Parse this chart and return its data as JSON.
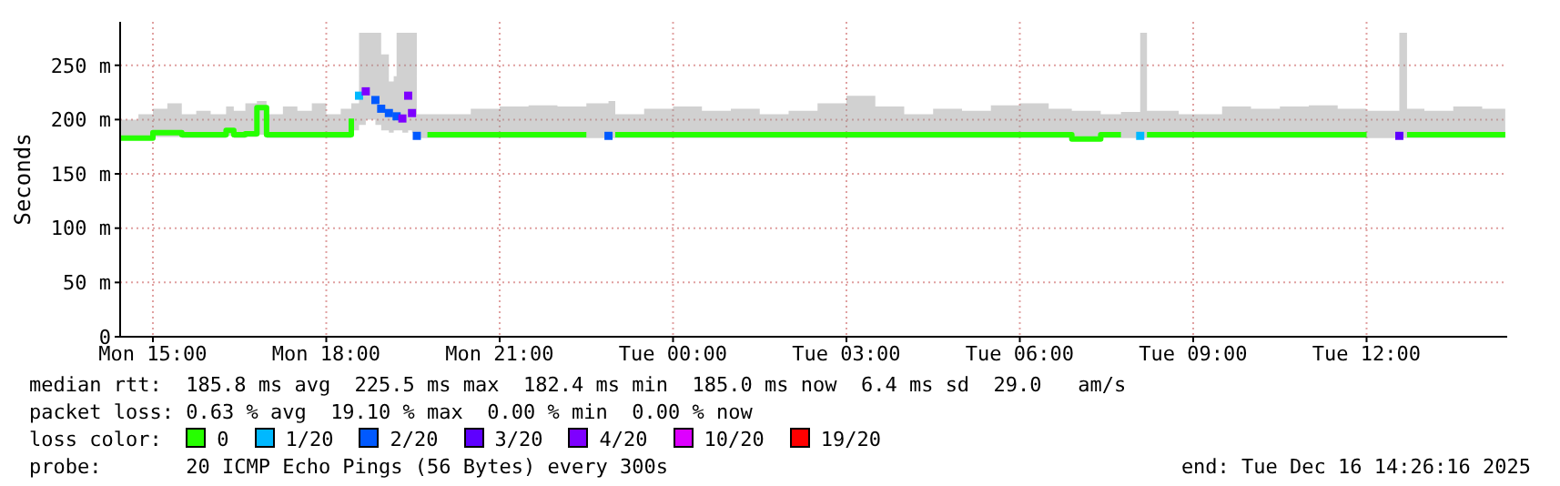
{
  "chart_data": {
    "type": "step",
    "ylabel": "Seconds",
    "xlim": [
      "2025-12-15T14:26",
      "2025-12-16T14:26"
    ],
    "xticks": [
      {
        "value": "2025-12-15T15:00",
        "label": "Mon 15:00"
      },
      {
        "value": "2025-12-15T18:00",
        "label": "Mon 18:00"
      },
      {
        "value": "2025-12-15T21:00",
        "label": "Mon 21:00"
      },
      {
        "value": "2025-12-16T00:00",
        "label": "Tue 00:00"
      },
      {
        "value": "2025-12-16T03:00",
        "label": "Tue 03:00"
      },
      {
        "value": "2025-12-16T06:00",
        "label": "Tue 06:00"
      },
      {
        "value": "2025-12-16T09:00",
        "label": "Tue 09:00"
      },
      {
        "value": "2025-12-16T12:00",
        "label": "Tue 12:00"
      }
    ],
    "ylim": [
      0,
      290
    ],
    "yticks": [
      0,
      {
        "value": 50,
        "label": "50 m"
      },
      {
        "value": 100,
        "label": "100 m"
      },
      {
        "value": 150,
        "label": "150 m"
      },
      {
        "value": 200,
        "label": "200 m"
      },
      {
        "value": 250,
        "label": "250 m"
      }
    ],
    "grid": true,
    "legend": "bottom",
    "legend_title": "loss color:",
    "annotations": [
      "median rtt:  185.8 ms avg  225.5 ms max  182.4 ms min  185.0 ms now  6.4 ms sd  29.0   am/s",
      "packet loss: 0.63 % avg  19.10 % max  0.00 % min  0.00 % now",
      "probe:       20 ICMP Echo Pings (56 Bytes) every 300s",
      "end: Tue Dec 16 14:26:16 2025"
    ],
    "series": [
      {
        "name": "0",
        "color": "#26ff00",
        "x": [
          "2025-12-15T14:26",
          "2025-12-15T14:45",
          "2025-12-15T15:00",
          "2025-12-15T15:15",
          "2025-12-15T15:30",
          "2025-12-15T15:45",
          "2025-12-15T16:00",
          "2025-12-15T16:16",
          "2025-12-15T16:24",
          "2025-12-15T16:36",
          "2025-12-15T16:48",
          "2025-12-15T16:58",
          "2025-12-15T17:15",
          "2025-12-15T17:30",
          "2025-12-15T17:45",
          "2025-12-15T18:00",
          "2025-12-15T18:15",
          "2025-12-15T18:26",
          "2025-12-15T18:34",
          "2025-12-15T18:41",
          "2025-12-15T18:51",
          "2025-12-15T18:57",
          "2025-12-15T19:05",
          "2025-12-15T19:10",
          "2025-12-15T19:13",
          "2025-12-15T19:19",
          "2025-12-15T19:25",
          "2025-12-15T19:29",
          "2025-12-15T19:34",
          "2025-12-15T19:45",
          "2025-12-15T20:00",
          "2025-12-15T20:30",
          "2025-12-15T21:00",
          "2025-12-15T21:30",
          "2025-12-15T22:00",
          "2025-12-15T22:30",
          "2025-12-15T22:53",
          "2025-12-15T23:00",
          "2025-12-15T23:30",
          "2025-12-16T00:00",
          "2025-12-16T00:30",
          "2025-12-16T01:00",
          "2025-12-16T01:30",
          "2025-12-16T02:00",
          "2025-12-16T02:30",
          "2025-12-16T03:00",
          "2025-12-16T03:30",
          "2025-12-16T04:00",
          "2025-12-16T04:30",
          "2025-12-16T05:00",
          "2025-12-16T05:30",
          "2025-12-16T06:00",
          "2025-12-16T06:30",
          "2025-12-16T06:54",
          "2025-12-16T07:24",
          "2025-12-16T07:45",
          "2025-12-16T08:05",
          "2025-12-16T08:12",
          "2025-12-16T08:45",
          "2025-12-16T09:30",
          "2025-12-16T10:00",
          "2025-12-16T10:30",
          "2025-12-16T11:00",
          "2025-12-16T11:30",
          "2025-12-16T12:00",
          "2025-12-16T12:34",
          "2025-12-16T12:42",
          "2025-12-16T13:00",
          "2025-12-16T13:30",
          "2025-12-16T14:00",
          "2025-12-16T14:24"
        ],
        "values": [
          183,
          183,
          188,
          188,
          186,
          186,
          186,
          190,
          186,
          187,
          211,
          186,
          186,
          186,
          186,
          186,
          186,
          201,
          null,
          null,
          null,
          null,
          null,
          null,
          null,
          null,
          null,
          null,
          null,
          186,
          186,
          186,
          186,
          186,
          186,
          186,
          null,
          186,
          186,
          186,
          186,
          186,
          186,
          186,
          186,
          186,
          186,
          186,
          186,
          186,
          186,
          186,
          186,
          182,
          186,
          186,
          null,
          186,
          186,
          186,
          186,
          186,
          186,
          186,
          186,
          null,
          186,
          186,
          186,
          186,
          186
        ],
        "lower": [
          182,
          182,
          184,
          184,
          183,
          183,
          183,
          185,
          183,
          184,
          186,
          183,
          183,
          183,
          183,
          183,
          183,
          190,
          195,
          200,
          195,
          190,
          188,
          190,
          190,
          188,
          190,
          188,
          183,
          183,
          183,
          183,
          183,
          183,
          183,
          183,
          183,
          183,
          183,
          183,
          183,
          183,
          183,
          183,
          183,
          183,
          183,
          183,
          183,
          183,
          183,
          183,
          183,
          181,
          183,
          183,
          183,
          183,
          183,
          183,
          183,
          183,
          183,
          183,
          183,
          183,
          183,
          183,
          183,
          183,
          183
        ],
        "upper": [
          200,
          205,
          210,
          215,
          205,
          208,
          205,
          212,
          208,
          215,
          217,
          205,
          212,
          208,
          215,
          205,
          210,
          215,
          280,
          280,
          280,
          260,
          235,
          240,
          280,
          280,
          280,
          280,
          205,
          205,
          205,
          210,
          212,
          213,
          212,
          215,
          217,
          205,
          210,
          212,
          208,
          210,
          205,
          208,
          215,
          222,
          212,
          205,
          210,
          208,
          213,
          215,
          210,
          208,
          205,
          207,
          280,
          208,
          205,
          212,
          210,
          212,
          213,
          210,
          208,
          280,
          210,
          208,
          212,
          210,
          205
        ]
      },
      {
        "name": "1/20",
        "type": "scatter",
        "marker": "square",
        "color": "#00b8ff",
        "x": [
          "2025-12-15T18:34",
          "2025-12-16T08:05"
        ],
        "values": [
          222,
          185
        ]
      },
      {
        "name": "2/20",
        "type": "scatter",
        "marker": "square",
        "color": "#0059ff",
        "x": [
          "2025-12-15T18:51",
          "2025-12-15T18:57",
          "2025-12-15T19:05",
          "2025-12-15T19:13",
          "2025-12-15T19:34",
          "2025-12-15T22:53"
        ],
        "values": [
          218,
          210,
          206,
          203,
          185,
          185
        ]
      },
      {
        "name": "3/20",
        "type": "scatter",
        "marker": "square",
        "color": "#5e00ff",
        "x": [
          "2025-12-16T12:34"
        ],
        "values": [
          185
        ]
      },
      {
        "name": "4/20",
        "type": "scatter",
        "marker": "square",
        "color": "#7e00ff",
        "x": [
          "2025-12-15T18:41",
          "2025-12-15T19:19",
          "2025-12-15T19:25",
          "2025-12-15T19:29"
        ],
        "values": [
          226,
          201,
          222,
          206
        ]
      },
      {
        "name": "10/20",
        "type": "scatter",
        "marker": "square",
        "color": "#dd00ff"
      },
      {
        "name": "19/20",
        "type": "scatter",
        "marker": "square",
        "color": "#ff0000"
      }
    ]
  }
}
